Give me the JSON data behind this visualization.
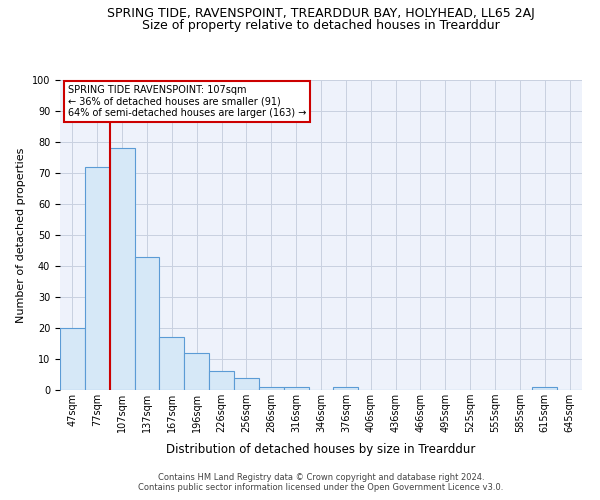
{
  "title": "SPRING TIDE, RAVENSPOINT, TREARDDUR BAY, HOLYHEAD, LL65 2AJ",
  "subtitle": "Size of property relative to detached houses in Trearddur",
  "xlabel": "Distribution of detached houses by size in Trearddur",
  "ylabel": "Number of detached properties",
  "bin_labels": [
    "47sqm",
    "77sqm",
    "107sqm",
    "137sqm",
    "167sqm",
    "196sqm",
    "226sqm",
    "256sqm",
    "286sqm",
    "316sqm",
    "346sqm",
    "376sqm",
    "406sqm",
    "436sqm",
    "466sqm",
    "495sqm",
    "525sqm",
    "555sqm",
    "585sqm",
    "615sqm",
    "645sqm"
  ],
  "bar_heights": [
    20,
    72,
    78,
    43,
    17,
    12,
    6,
    4,
    1,
    1,
    0,
    1,
    0,
    0,
    0,
    0,
    0,
    0,
    0,
    1,
    0
  ],
  "bar_color": "#d6e8f7",
  "bar_edge_color": "#5b9bd5",
  "red_line_index": 2,
  "ylim": [
    0,
    100
  ],
  "yticks": [
    0,
    10,
    20,
    30,
    40,
    50,
    60,
    70,
    80,
    90,
    100
  ],
  "annotation_title": "SPRING TIDE RAVENSPOINT: 107sqm",
  "annotation_line1": "← 36% of detached houses are smaller (91)",
  "annotation_line2": "64% of semi-detached houses are larger (163) →",
  "annotation_box_color": "#ffffff",
  "annotation_box_edge": "#cc0000",
  "footer_line1": "Contains HM Land Registry data © Crown copyright and database right 2024.",
  "footer_line2": "Contains public sector information licensed under the Open Government Licence v3.0.",
  "background_color": "#eef2fb",
  "grid_color": "#c8d0e0",
  "title_fontsize": 9,
  "subtitle_fontsize": 9,
  "ylabel_fontsize": 8,
  "xlabel_fontsize": 8.5,
  "tick_fontsize": 7,
  "annot_fontsize": 7,
  "footer_fontsize": 6
}
